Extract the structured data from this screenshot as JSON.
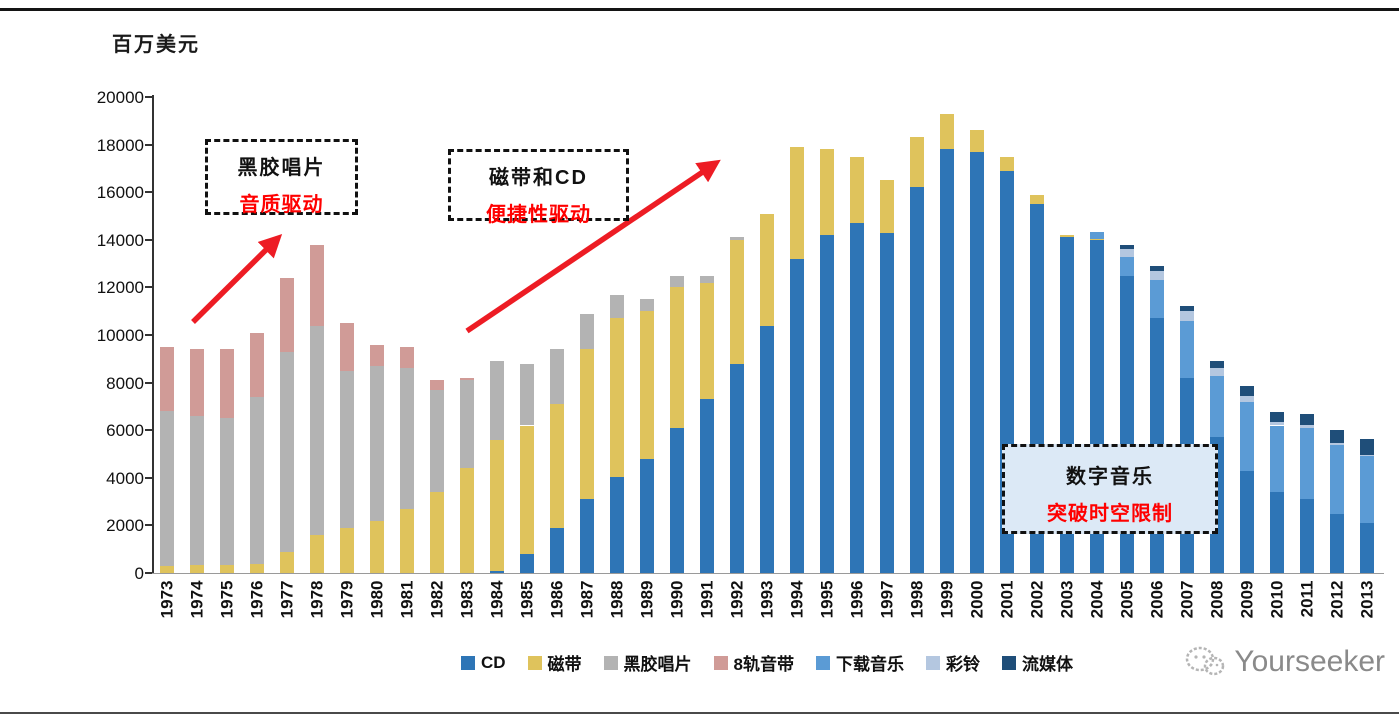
{
  "chart_data": {
    "type": "bar",
    "stacked": true,
    "unit_label": "百万美元",
    "title": "",
    "xlabel": "",
    "ylabel": "百万美元",
    "ylim": [
      0,
      20000
    ],
    "ytick_step": 2000,
    "grid": false,
    "legend_position": "bottom",
    "categories": [
      "1973",
      "1974",
      "1975",
      "1976",
      "1977",
      "1978",
      "1979",
      "1980",
      "1981",
      "1982",
      "1983",
      "1984",
      "1985",
      "1986",
      "1987",
      "1988",
      "1989",
      "1990",
      "1991",
      "1992",
      "1993",
      "1994",
      "1995",
      "1996",
      "1997",
      "1998",
      "1999",
      "2000",
      "2001",
      "2002",
      "2003",
      "2004",
      "2005",
      "2006",
      "2007",
      "2008",
      "2009",
      "2010",
      "2011",
      "2012",
      "2013"
    ],
    "series": [
      {
        "name": "CD",
        "color": "#2E75B6",
        "values": [
          0,
          0,
          0,
          0,
          0,
          0,
          0,
          0,
          0,
          0,
          0,
          100,
          800,
          1900,
          3100,
          4050,
          4800,
          6100,
          7300,
          8800,
          10400,
          13200,
          14200,
          14700,
          14300,
          16200,
          17800,
          17700,
          16900,
          15500,
          14100,
          14000,
          12500,
          10700,
          8200,
          5700,
          4300,
          3400,
          3100,
          2500,
          2100
        ]
      },
      {
        "name": "磁带",
        "color": "#DFC35C",
        "values": [
          300,
          350,
          350,
          400,
          900,
          1600,
          1900,
          2200,
          2700,
          3400,
          4400,
          5500,
          5400,
          5200,
          6300,
          6650,
          6200,
          5900,
          4900,
          5200,
          4700,
          4700,
          3600,
          2800,
          2200,
          2100,
          1500,
          900,
          600,
          400,
          100,
          50,
          0,
          0,
          0,
          0,
          0,
          0,
          0,
          0,
          0
        ]
      },
      {
        "name": "黑胶唱片",
        "color": "#B3B3B3",
        "values": [
          6500,
          6250,
          6150,
          7000,
          8400,
          8800,
          6600,
          6500,
          5900,
          4300,
          3700,
          3300,
          2600,
          2300,
          1500,
          1000,
          500,
          500,
          300,
          100,
          0,
          0,
          0,
          0,
          0,
          0,
          0,
          0,
          0,
          0,
          0,
          0,
          0,
          0,
          0,
          0,
          0,
          0,
          0,
          0,
          0
        ]
      },
      {
        "name": "8轨音带",
        "color": "#D09B97",
        "values": [
          2700,
          2800,
          2900,
          2700,
          3100,
          3400,
          2000,
          900,
          900,
          400,
          100,
          0,
          0,
          0,
          0,
          0,
          0,
          0,
          0,
          0,
          0,
          0,
          0,
          0,
          0,
          0,
          0,
          0,
          0,
          0,
          0,
          0,
          0,
          0,
          0,
          0,
          0,
          0,
          0,
          0,
          0
        ]
      },
      {
        "name": "下载音乐",
        "color": "#5B9BD5",
        "values": [
          0,
          0,
          0,
          0,
          0,
          0,
          0,
          0,
          0,
          0,
          0,
          0,
          0,
          0,
          0,
          0,
          0,
          0,
          0,
          0,
          0,
          0,
          0,
          0,
          0,
          0,
          0,
          0,
          0,
          0,
          0,
          300,
          800,
          1600,
          2400,
          2600,
          2900,
          2800,
          3000,
          2900,
          2800
        ]
      },
      {
        "name": "彩铃",
        "color": "#B4C7E0",
        "values": [
          0,
          0,
          0,
          0,
          0,
          0,
          0,
          0,
          0,
          0,
          0,
          0,
          0,
          0,
          0,
          0,
          0,
          0,
          0,
          0,
          0,
          0,
          0,
          0,
          0,
          0,
          0,
          0,
          0,
          0,
          0,
          0,
          300,
          400,
          400,
          300,
          250,
          150,
          100,
          60,
          50
        ]
      },
      {
        "name": "流媒体",
        "color": "#1F4E79",
        "values": [
          0,
          0,
          0,
          0,
          0,
          0,
          0,
          0,
          0,
          0,
          0,
          0,
          0,
          0,
          0,
          0,
          0,
          0,
          0,
          0,
          0,
          0,
          0,
          0,
          0,
          0,
          0,
          0,
          0,
          0,
          0,
          0,
          200,
          200,
          200,
          300,
          400,
          400,
          500,
          550,
          700
        ]
      }
    ]
  },
  "annotations": [
    {
      "line1": "黑胶唱片",
      "line2": "音质驱动"
    },
    {
      "line1": "磁带和CD",
      "line2": "便捷性驱动"
    },
    {
      "line1": "数字音乐",
      "line2": "突破时空限制"
    }
  ],
  "watermark": {
    "text": "Yourseeker"
  },
  "colors": {
    "annotation_red": "#FF0000",
    "arrow_red": "#ED1C24",
    "digital_box_bg": "#DCE9F6"
  }
}
